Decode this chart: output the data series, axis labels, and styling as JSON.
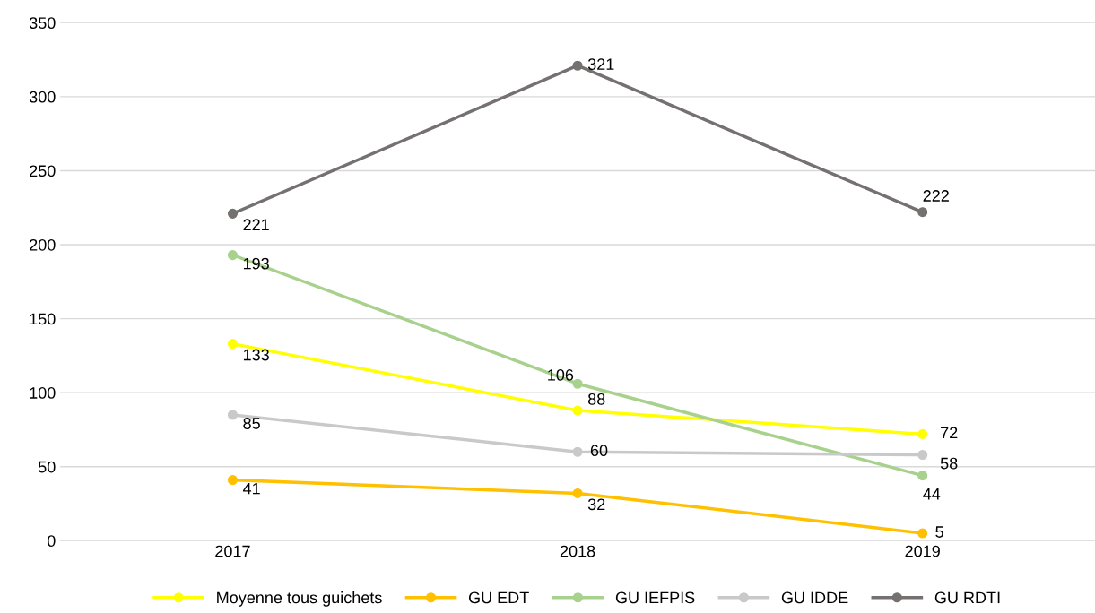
{
  "chart_data": {
    "type": "line",
    "categories": [
      "2017",
      "2018",
      "2019"
    ],
    "series": [
      {
        "name": "Moyenne tous guichets",
        "color": "#ffff00",
        "values": [
          133,
          88,
          72
        ]
      },
      {
        "name": "GU EDT",
        "color": "#ffc000",
        "values": [
          41,
          32,
          5
        ]
      },
      {
        "name": "GU IEFPIS",
        "color": "#a9d18e",
        "values": [
          193,
          106,
          44
        ]
      },
      {
        "name": "GU IDDE",
        "color": "#c9c9c9",
        "values": [
          85,
          60,
          58
        ]
      },
      {
        "name": "GU RDTI",
        "color": "#767171",
        "values": [
          221,
          321,
          222
        ]
      }
    ],
    "ylim": [
      0,
      350
    ],
    "yticks": [
      0,
      50,
      100,
      150,
      200,
      250,
      300,
      350
    ],
    "grid": "y",
    "legend": "bottom",
    "marker": "circle",
    "line_style": "solid",
    "data_labels": true
  }
}
